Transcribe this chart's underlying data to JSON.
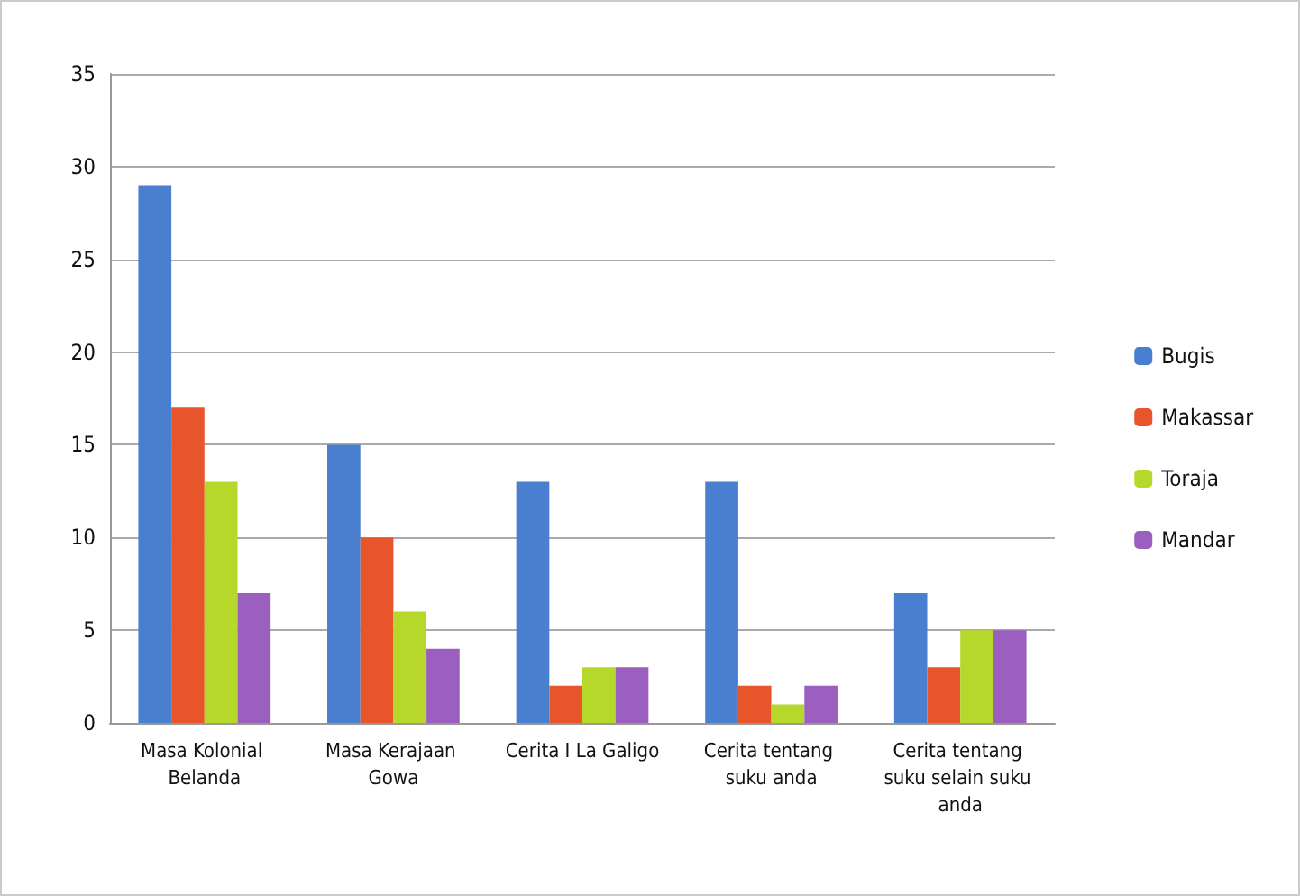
{
  "chart_data": {
    "type": "bar",
    "categories": [
      "Masa Kolonial Belanda",
      "Masa Kerajaan Gowa",
      "Cerita I La Galigo",
      "Cerita tentang suku anda",
      "Cerita tentang suku selain suku anda"
    ],
    "series": [
      {
        "name": "Bugis",
        "color": "#4a7fcf",
        "values": [
          29,
          15,
          13,
          13,
          7
        ]
      },
      {
        "name": "Makassar",
        "color": "#e8552a",
        "values": [
          17,
          10,
          2,
          2,
          3
        ]
      },
      {
        "name": "Toraja",
        "color": "#b5d82a",
        "values": [
          13,
          6,
          3,
          1,
          5
        ]
      },
      {
        "name": "Mandar",
        "color": "#9b5fc0",
        "values": [
          7,
          4,
          3,
          2,
          5
        ]
      }
    ],
    "ylim": [
      0,
      35
    ],
    "yticks": [
      0,
      5,
      10,
      15,
      20,
      25,
      30,
      35
    ],
    "grid": "y",
    "legend": "right"
  }
}
